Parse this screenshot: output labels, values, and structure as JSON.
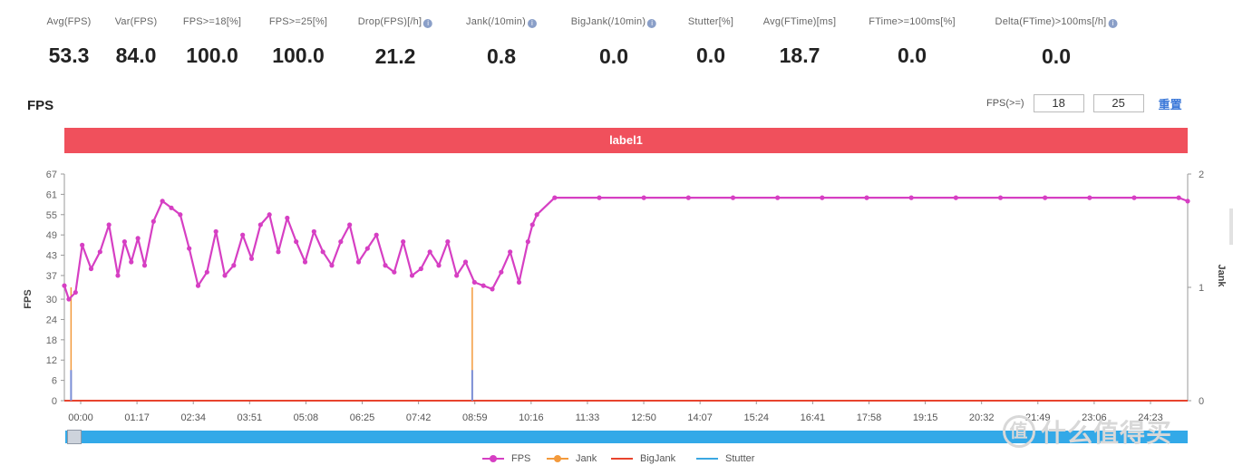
{
  "stats": [
    {
      "label": "Avg(FPS)",
      "value": "53.3",
      "info": false
    },
    {
      "label": "Var(FPS)",
      "value": "84.0",
      "info": false
    },
    {
      "label": "FPS>=18[%]",
      "value": "100.0",
      "info": false
    },
    {
      "label": "FPS>=25[%]",
      "value": "100.0",
      "info": false
    },
    {
      "label": "Drop(FPS)[/h]",
      "value": "21.2",
      "info": true
    },
    {
      "label": "Jank(/10min)",
      "value": "0.8",
      "info": true
    },
    {
      "label": "BigJank(/10min)",
      "value": "0.0",
      "info": true
    },
    {
      "label": "Stutter[%]",
      "value": "0.0",
      "info": false
    },
    {
      "label": "Avg(FTime)[ms]",
      "value": "18.7",
      "info": false
    },
    {
      "label": "FTime>=100ms[%]",
      "value": "0.0",
      "info": false
    },
    {
      "label": "Delta(FTime)>100ms[/h]",
      "value": "0.0",
      "info": true
    }
  ],
  "info_glyph": "i",
  "header": {
    "title": "FPS",
    "threshold_label": "FPS(>=)",
    "threshold_low": "18",
    "threshold_high": "25",
    "reset_label": "重置"
  },
  "band_label": "label1",
  "colors": {
    "fps": "#d63fc3",
    "jank": "#f39a3c",
    "bigjank": "#e8442e",
    "stutter": "#3ba7e2",
    "band": "#f0505c",
    "axis": "#999999",
    "stutter_spike": "#7b8fd8"
  },
  "chart_data": {
    "type": "line",
    "title": "FPS",
    "xlabel": "",
    "ylabel": "FPS",
    "y2label": "Jank",
    "ylim": [
      0,
      67
    ],
    "y2lim": [
      0,
      2
    ],
    "yticks": [
      "0",
      "6",
      "12",
      "18",
      "24",
      "30",
      "37",
      "43",
      "49",
      "55",
      "61",
      "67"
    ],
    "y2ticks": [
      "0",
      "1",
      "2"
    ],
    "xticks": [
      "00:00",
      "01:17",
      "02:34",
      "03:51",
      "05:08",
      "06:25",
      "07:42",
      "08:59",
      "10:16",
      "11:33",
      "12:50",
      "14:07",
      "15:24",
      "16:41",
      "17:58",
      "19:15",
      "20:32",
      "21:49",
      "23:06",
      "24:23"
    ],
    "x_unit": "minutes",
    "xlim": [
      0,
      25.2
    ],
    "legend": [
      "FPS",
      "Jank",
      "BigJank",
      "Stutter"
    ],
    "legend_position": "bottom",
    "grid": false,
    "series": [
      {
        "name": "FPS",
        "x": [
          0,
          0.1,
          0.25,
          0.4,
          0.6,
          0.8,
          1.0,
          1.2,
          1.35,
          1.5,
          1.65,
          1.8,
          2.0,
          2.2,
          2.4,
          2.6,
          2.8,
          3.0,
          3.2,
          3.4,
          3.6,
          3.8,
          4.0,
          4.2,
          4.4,
          4.6,
          4.8,
          5.0,
          5.2,
          5.4,
          5.6,
          5.8,
          6.0,
          6.2,
          6.4,
          6.6,
          6.8,
          7.0,
          7.2,
          7.4,
          7.6,
          7.8,
          8.0,
          8.2,
          8.4,
          8.6,
          8.8,
          9.0,
          9.2,
          9.4,
          9.6,
          9.8,
          10.0,
          10.2,
          10.4,
          10.5,
          10.6,
          11.0,
          12.0,
          13.0,
          14.0,
          15.0,
          16.0,
          17.0,
          18.0,
          19.0,
          20.0,
          21.0,
          22.0,
          23.0,
          24.0,
          25.0,
          25.2
        ],
        "values": [
          34,
          30,
          32,
          46,
          39,
          44,
          52,
          37,
          47,
          41,
          48,
          40,
          53,
          59,
          57,
          55,
          45,
          34,
          38,
          50,
          37,
          40,
          49,
          42,
          52,
          55,
          44,
          54,
          47,
          41,
          50,
          44,
          40,
          47,
          52,
          41,
          45,
          49,
          40,
          38,
          47,
          37,
          39,
          44,
          40,
          47,
          37,
          41,
          35,
          34,
          33,
          38,
          44,
          35,
          47,
          52,
          55,
          60,
          60,
          60,
          60,
          60,
          60,
          60,
          60,
          60,
          60,
          60,
          60,
          60,
          60,
          60,
          59
        ]
      },
      {
        "name": "Jank",
        "x": [
          0.15,
          9.15
        ],
        "values": [
          1,
          1
        ]
      },
      {
        "name": "BigJank",
        "x": [],
        "values": []
      },
      {
        "name": "Stutter",
        "x": [
          0.15,
          9.15
        ],
        "values": [
          0.27,
          0.27
        ]
      }
    ]
  },
  "legend_items": [
    {
      "label": "FPS",
      "key": "fps"
    },
    {
      "label": "Jank",
      "key": "jank"
    },
    {
      "label": "BigJank",
      "key": "bigjank"
    },
    {
      "label": "Stutter",
      "key": "stutter"
    }
  ],
  "watermark": "什么值得买",
  "watermark_logo": "值"
}
